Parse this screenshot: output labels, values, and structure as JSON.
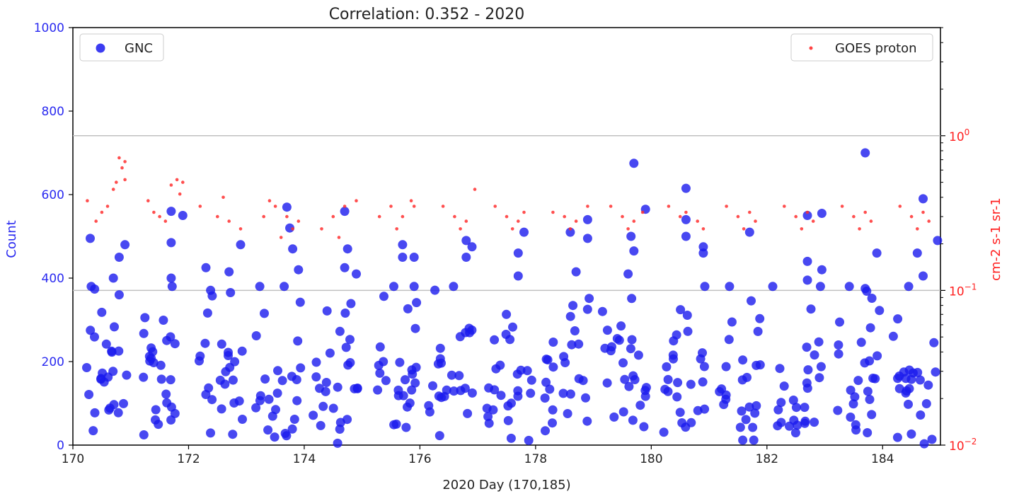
{
  "chart_data": {
    "type": "scatter",
    "title": "Correlation: 0.352 - 2020",
    "xlabel": "2020 Day (170,185)",
    "ylabel_left": "Count",
    "ylabel_right": "cm-2 s-1 sr-1",
    "xlim": [
      170,
      185
    ],
    "ylim_left": [
      0,
      1000
    ],
    "ylim_right": [
      0.01,
      5
    ],
    "right_scale": "log",
    "x_ticks": [
      "170",
      "172",
      "174",
      "176",
      "178",
      "180",
      "182",
      "184"
    ],
    "y_ticks_left": [
      "0",
      "200",
      "400",
      "600",
      "800",
      "1000"
    ],
    "y_ticks_right": [
      {
        "base": "10",
        "exp": "−2",
        "value": 0.01
      },
      {
        "base": "10",
        "exp": "−1",
        "value": 0.1
      },
      {
        "base": "10",
        "exp": "0",
        "value": 1
      }
    ],
    "hlines_right_axis": [
      1,
      0.1
    ],
    "grid": false,
    "legend": [
      {
        "name": "GNC",
        "placement": "top-left"
      },
      {
        "name": "GOES proton",
        "placement": "top-right"
      }
    ],
    "colors": {
      "GNC": "#1a1aee",
      "GOES proton": "#ff3030",
      "hline": "#c0c0c0"
    },
    "series": [
      {
        "name": "GNC",
        "axis": "left",
        "points": [
          [
            170.3,
            495
          ],
          [
            170.8,
            450
          ],
          [
            170.9,
            480
          ],
          [
            170.7,
            400
          ],
          [
            170.8,
            360
          ],
          [
            171.7,
            560
          ],
          [
            171.7,
            485
          ],
          [
            171.9,
            550
          ],
          [
            171.7,
            400
          ],
          [
            172.3,
            425
          ],
          [
            172.7,
            415
          ],
          [
            172.9,
            480
          ],
          [
            173.7,
            570
          ],
          [
            173.75,
            520
          ],
          [
            173.8,
            470
          ],
          [
            173.9,
            420
          ],
          [
            174.7,
            560
          ],
          [
            174.75,
            470
          ],
          [
            174.7,
            425
          ],
          [
            174.9,
            410
          ],
          [
            175.7,
            480
          ],
          [
            175.7,
            450
          ],
          [
            175.9,
            450
          ],
          [
            175.9,
            380
          ],
          [
            176.8,
            490
          ],
          [
            176.8,
            450
          ],
          [
            176.9,
            475
          ],
          [
            177.7,
            460
          ],
          [
            177.8,
            510
          ],
          [
            177.7,
            405
          ],
          [
            178.6,
            510
          ],
          [
            178.9,
            540
          ],
          [
            178.9,
            495
          ],
          [
            178.7,
            415
          ],
          [
            179.7,
            675
          ],
          [
            179.9,
            565
          ],
          [
            179.65,
            500
          ],
          [
            179.7,
            465
          ],
          [
            179.6,
            410
          ],
          [
            180.6,
            615
          ],
          [
            180.6,
            540
          ],
          [
            180.6,
            500
          ],
          [
            180.9,
            475
          ],
          [
            180.9,
            460
          ],
          [
            181.7,
            510
          ],
          [
            182.1,
            380
          ],
          [
            182.7,
            550
          ],
          [
            182.95,
            555
          ],
          [
            182.7,
            440
          ],
          [
            182.7,
            395
          ],
          [
            182.95,
            420
          ],
          [
            183.7,
            700
          ],
          [
            183.9,
            460
          ],
          [
            183.7,
            375
          ],
          [
            184.7,
            590
          ],
          [
            184.6,
            460
          ],
          [
            184.95,
            490
          ],
          [
            184.7,
            405
          ]
        ]
      },
      {
        "name": "GOES proton",
        "axis": "right",
        "points": [
          [
            170.25,
            0.38
          ],
          [
            170.8,
            0.72
          ],
          [
            170.85,
            0.62
          ],
          [
            170.9,
            0.68
          ],
          [
            170.7,
            0.45
          ],
          [
            170.6,
            0.35
          ],
          [
            170.5,
            0.32
          ],
          [
            170.4,
            0.28
          ],
          [
            170.9,
            0.52
          ],
          [
            170.75,
            0.5
          ],
          [
            171.3,
            0.38
          ],
          [
            171.5,
            0.3
          ],
          [
            171.7,
            0.48
          ],
          [
            171.8,
            0.52
          ],
          [
            171.9,
            0.5
          ],
          [
            171.6,
            0.28
          ],
          [
            171.4,
            0.32
          ],
          [
            171.85,
            0.42
          ],
          [
            172.2,
            0.35
          ],
          [
            172.5,
            0.3
          ],
          [
            172.7,
            0.28
          ],
          [
            172.9,
            0.25
          ],
          [
            172.6,
            0.4
          ],
          [
            173.3,
            0.3
          ],
          [
            173.5,
            0.35
          ],
          [
            173.7,
            0.3
          ],
          [
            173.8,
            0.25
          ],
          [
            173.9,
            0.28
          ],
          [
            173.6,
            0.22
          ],
          [
            173.4,
            0.38
          ],
          [
            174.3,
            0.25
          ],
          [
            174.5,
            0.3
          ],
          [
            174.7,
            0.35
          ],
          [
            174.9,
            0.38
          ],
          [
            174.6,
            0.22
          ],
          [
            175.3,
            0.3
          ],
          [
            175.5,
            0.35
          ],
          [
            175.7,
            0.3
          ],
          [
            175.85,
            0.38
          ],
          [
            175.9,
            0.35
          ],
          [
            175.6,
            0.25
          ],
          [
            176.4,
            0.35
          ],
          [
            176.6,
            0.3
          ],
          [
            176.8,
            0.28
          ],
          [
            176.95,
            0.45
          ],
          [
            176.7,
            0.25
          ],
          [
            177.3,
            0.35
          ],
          [
            177.5,
            0.3
          ],
          [
            177.7,
            0.28
          ],
          [
            177.8,
            0.32
          ],
          [
            177.6,
            0.25
          ],
          [
            178.3,
            0.32
          ],
          [
            178.5,
            0.3
          ],
          [
            178.7,
            0.28
          ],
          [
            178.9,
            0.35
          ],
          [
            178.6,
            0.25
          ],
          [
            179.3,
            0.35
          ],
          [
            179.5,
            0.3
          ],
          [
            179.7,
            0.28
          ],
          [
            179.85,
            0.32
          ],
          [
            179.6,
            0.25
          ],
          [
            180.3,
            0.35
          ],
          [
            180.5,
            0.3
          ],
          [
            180.6,
            0.32
          ],
          [
            180.8,
            0.28
          ],
          [
            180.9,
            0.25
          ],
          [
            181.3,
            0.35
          ],
          [
            181.5,
            0.3
          ],
          [
            181.7,
            0.32
          ],
          [
            181.8,
            0.28
          ],
          [
            181.6,
            0.25
          ],
          [
            182.3,
            0.35
          ],
          [
            182.5,
            0.3
          ],
          [
            182.7,
            0.32
          ],
          [
            182.8,
            0.28
          ],
          [
            182.6,
            0.25
          ],
          [
            183.3,
            0.35
          ],
          [
            183.5,
            0.3
          ],
          [
            183.7,
            0.32
          ],
          [
            183.8,
            0.28
          ],
          [
            183.6,
            0.25
          ],
          [
            184.3,
            0.35
          ],
          [
            184.5,
            0.3
          ],
          [
            184.7,
            0.32
          ],
          [
            184.8,
            0.28
          ],
          [
            184.6,
            0.25
          ]
        ]
      }
    ]
  }
}
